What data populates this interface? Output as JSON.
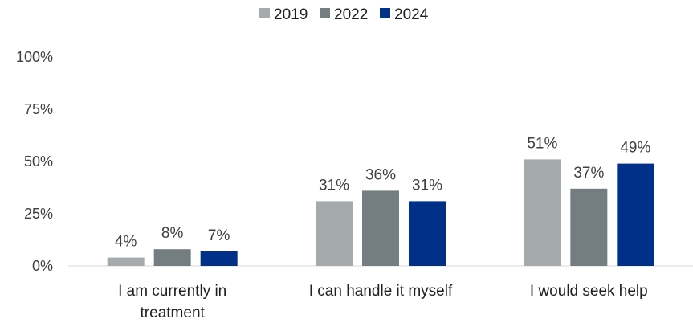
{
  "chart_data": {
    "type": "bar",
    "title": "",
    "xlabel": "",
    "ylabel": "",
    "categories": [
      [
        "I am currently in",
        "treatment"
      ],
      [
        "I can handle it myself"
      ],
      [
        "I would seek help"
      ]
    ],
    "series": [
      {
        "name": "2019",
        "color": "#a5abac",
        "values": [
          4,
          31,
          51
        ],
        "labels": [
          "4%",
          "31%",
          "51%"
        ]
      },
      {
        "name": "2022",
        "color": "#747d7f",
        "values": [
          8,
          36,
          37
        ],
        "labels": [
          "8%",
          "36%",
          "37%"
        ]
      },
      {
        "name": "2024",
        "color": "#003087",
        "values": [
          7,
          31,
          49
        ],
        "labels": [
          "7%",
          "31%",
          "49%"
        ]
      }
    ],
    "ylim": [
      0,
      100
    ],
    "yticks": [
      0,
      25,
      50,
      75,
      100
    ],
    "ytick_labels": [
      "0%",
      "25%",
      "50%",
      "75%",
      "100%"
    ],
    "grid": false,
    "legend_position": "top-center"
  }
}
